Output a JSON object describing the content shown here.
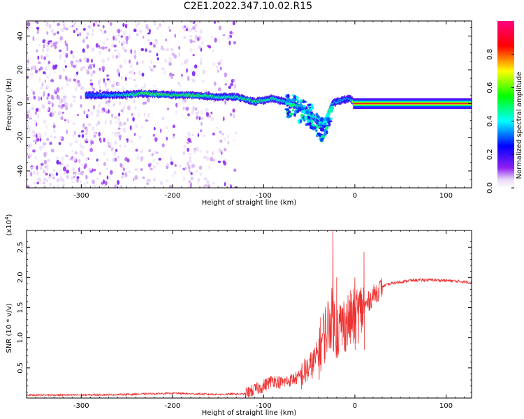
{
  "title": "C2E1.2022.347.10.02.R15",
  "chart_data": [
    {
      "type": "heatmap",
      "xlabel": "Height of straight line (km)",
      "ylabel": "Frequency (Hz)",
      "xlim": [
        -360,
        128
      ],
      "ylim": [
        -50,
        49
      ],
      "x_ticks": [
        -300,
        -200,
        -100,
        0,
        100
      ],
      "x_tick_labels": [
        "-300",
        "-200",
        "-100",
        "0",
        "100"
      ],
      "y_ticks": [
        -40,
        -20,
        0,
        20,
        40
      ],
      "y_tick_labels": [
        "-40",
        "-20",
        "0",
        "20",
        "40"
      ],
      "colorbar": {
        "label": "Normalized spectral amplitude",
        "range": [
          0.0,
          1.0
        ],
        "ticks": [
          0.0,
          0.2,
          0.4,
          0.6,
          0.8
        ],
        "tick_labels": [
          "0.0",
          "0.2",
          "0.4",
          "0.6",
          "0.8"
        ],
        "colormap": [
          "#ffffff",
          "#e0c8f8",
          "#8000f0",
          "#0000ff",
          "#00ffff",
          "#00ff00",
          "#ffff00",
          "#ff0000",
          "#ff0080"
        ]
      },
      "signal_track": {
        "height_km": [
          -290,
          -260,
          -230,
          -200,
          -180,
          -150,
          -130,
          -110,
          -90,
          -70,
          -50,
          -35,
          -25,
          -15,
          -5,
          0,
          50,
          128
        ],
        "frequency_hz": [
          5,
          5,
          6,
          5,
          5,
          4,
          4,
          1,
          3,
          0,
          -5,
          -15,
          0,
          2,
          3,
          0,
          0,
          0
        ],
        "peak_amplitude": [
          0.35,
          0.45,
          0.6,
          0.55,
          0.6,
          0.5,
          0.5,
          0.55,
          0.5,
          0.45,
          0.45,
          0.35,
          0.4,
          0.4,
          0.35,
          0.95,
          0.95,
          0.95
        ]
      },
      "grid": false
    },
    {
      "type": "line",
      "xlabel": "Height of straight line (km)",
      "ylabel": "SNR (10 * v/v)",
      "y_multiplier_label": "(x10",
      "y_multiplier_exp": "4",
      "xlim": [
        -360,
        128
      ],
      "ylim": [
        0,
        2.78
      ],
      "x_ticks": [
        -300,
        -200,
        -100,
        0,
        100
      ],
      "x_tick_labels": [
        "-300",
        "-200",
        "-100",
        "0",
        "100"
      ],
      "y_ticks": [
        0.5,
        1.0,
        1.5,
        2.0,
        2.5
      ],
      "y_tick_labels": [
        "0.5",
        "1.0",
        "1.5",
        "2.0",
        "2.5"
      ],
      "series": [
        {
          "color": "#ee3333",
          "x": [
            -360,
            -300,
            -250,
            -200,
            -180,
            -150,
            -120,
            -100,
            -90,
            -80,
            -70,
            -60,
            -50,
            -45,
            -40,
            -35,
            -30,
            -25,
            -20,
            -15,
            -10,
            0,
            10,
            15,
            20,
            30,
            40,
            60,
            80,
            100,
            128
          ],
          "y": [
            0.05,
            0.05,
            0.06,
            0.08,
            0.07,
            0.06,
            0.07,
            0.2,
            0.3,
            0.25,
            0.3,
            0.35,
            0.5,
            0.6,
            0.75,
            1.0,
            1.2,
            1.35,
            1.1,
            1.2,
            1.25,
            1.35,
            1.5,
            1.6,
            1.7,
            1.85,
            1.9,
            1.95,
            1.96,
            1.95,
            1.92
          ]
        }
      ],
      "spikes": [
        {
          "x": -24,
          "y": 2.78
        },
        {
          "x": 10,
          "y": 2.42
        },
        {
          "x": -20,
          "y": 2.0
        },
        {
          "x": 0,
          "y": 2.0
        }
      ],
      "grid": false
    }
  ]
}
